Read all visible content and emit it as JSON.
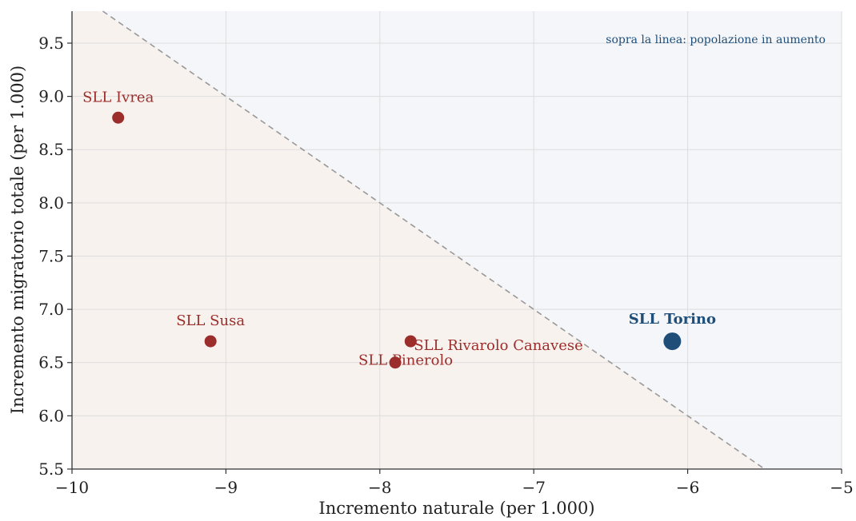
{
  "chart_data": {
    "type": "scatter",
    "xlabel": "Incremento naturale  (per 1.000)",
    "ylabel": "Incremento migratorio totale  (per 1.000)",
    "xlim": [
      -10,
      -5
    ],
    "ylim": [
      5.5,
      9.8
    ],
    "xticks": [
      "−10",
      "−9",
      "−8",
      "−7",
      "−6",
      "−5"
    ],
    "yticks": [
      "5.5",
      "6.0",
      "6.5",
      "7.0",
      "7.5",
      "8.0",
      "8.5",
      "9.0",
      "9.5"
    ],
    "grid": true,
    "reference_line": {
      "description": "x + y = 0",
      "style": "dashed"
    },
    "annotation": "sopra la linea: popolazione in aumento",
    "colors": {
      "points": "#9b2d2a",
      "highlight": "#1f4e79",
      "above_region": "#f4f6f9",
      "below_region": "#f8f2ef",
      "grid": "#dddddd",
      "reference_line": "#999999"
    },
    "points": [
      {
        "label": "SLL Ivrea",
        "x": -9.7,
        "y": 8.8
      },
      {
        "label": "SLL Susa",
        "x": -9.1,
        "y": 6.7
      },
      {
        "label": "SLL Rivarolo Canavese",
        "x": -7.8,
        "y": 6.7
      },
      {
        "label": "SLL Pinerolo",
        "x": -7.9,
        "y": 6.5
      },
      {
        "label": "SLL Torino",
        "x": -6.1,
        "y": 6.7,
        "highlight": true
      }
    ]
  }
}
